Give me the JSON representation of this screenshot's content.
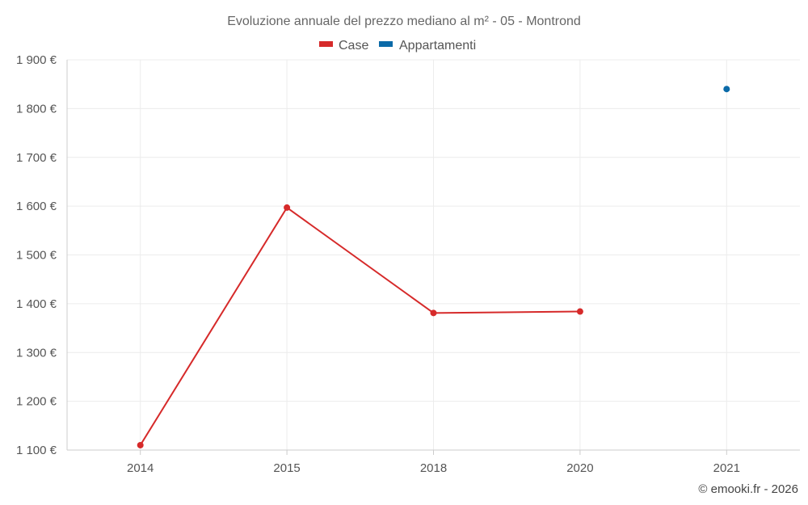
{
  "chart_data": {
    "type": "line",
    "title": "Evoluzione annuale del prezzo mediano al m² - 05 - Montrond",
    "categories": [
      "2014",
      "2015",
      "2018",
      "2020",
      "2021"
    ],
    "yticks": [
      "1 100 €",
      "1 200 €",
      "1 300 €",
      "1 400 €",
      "1 500 €",
      "1 600 €",
      "1 700 €",
      "1 800 €",
      "1 900 €"
    ],
    "ylim": [
      1100,
      1900
    ],
    "grid": true,
    "legend_position": "top-center",
    "series": [
      {
        "name": "Case",
        "color": "#d62a2a",
        "values": [
          1110,
          1597,
          1381,
          1384,
          null
        ]
      },
      {
        "name": "Appartamenti",
        "color": "#0b6aa8",
        "values": [
          null,
          null,
          null,
          null,
          1840
        ]
      }
    ]
  },
  "credit": "© emooki.fr - 2026"
}
